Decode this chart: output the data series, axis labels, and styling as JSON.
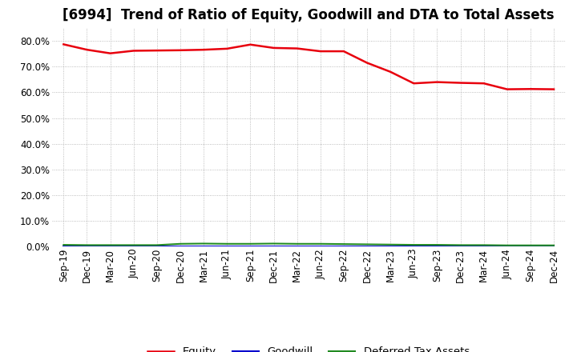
{
  "title": "[6994]  Trend of Ratio of Equity, Goodwill and DTA to Total Assets",
  "x_labels": [
    "Sep-19",
    "Dec-19",
    "Mar-20",
    "Jun-20",
    "Sep-20",
    "Dec-20",
    "Mar-21",
    "Jun-21",
    "Sep-21",
    "Dec-21",
    "Mar-22",
    "Jun-22",
    "Sep-22",
    "Dec-22",
    "Mar-23",
    "Jun-23",
    "Sep-23",
    "Dec-23",
    "Mar-24",
    "Jun-24",
    "Sep-24",
    "Dec-24"
  ],
  "equity": [
    0.787,
    0.766,
    0.752,
    0.762,
    0.763,
    0.764,
    0.766,
    0.77,
    0.786,
    0.773,
    0.771,
    0.76,
    0.76,
    0.715,
    0.68,
    0.635,
    0.64,
    0.637,
    0.635,
    0.612,
    0.613,
    0.612
  ],
  "goodwill": [
    0.0,
    0.0,
    0.0,
    0.0,
    0.0,
    0.0,
    0.0,
    0.0,
    0.0,
    0.0,
    0.0,
    0.0,
    0.0,
    0.0,
    0.0,
    0.0,
    0.0,
    0.0,
    0.0,
    0.0,
    0.0,
    0.0
  ],
  "dta": [
    0.006,
    0.005,
    0.005,
    0.005,
    0.005,
    0.01,
    0.011,
    0.01,
    0.01,
    0.011,
    0.01,
    0.01,
    0.009,
    0.008,
    0.007,
    0.006,
    0.006,
    0.005,
    0.005,
    0.004,
    0.004,
    0.004
  ],
  "equity_color": "#e8000d",
  "goodwill_color": "#0000cd",
  "dta_color": "#228B22",
  "background_color": "#ffffff",
  "grid_color": "#aaaaaa",
  "ylim": [
    0.0,
    0.85
  ],
  "yticks": [
    0.0,
    0.1,
    0.2,
    0.3,
    0.4,
    0.5,
    0.6,
    0.7,
    0.8
  ],
  "title_fontsize": 12,
  "tick_fontsize": 8.5,
  "legend_fontsize": 9.5
}
